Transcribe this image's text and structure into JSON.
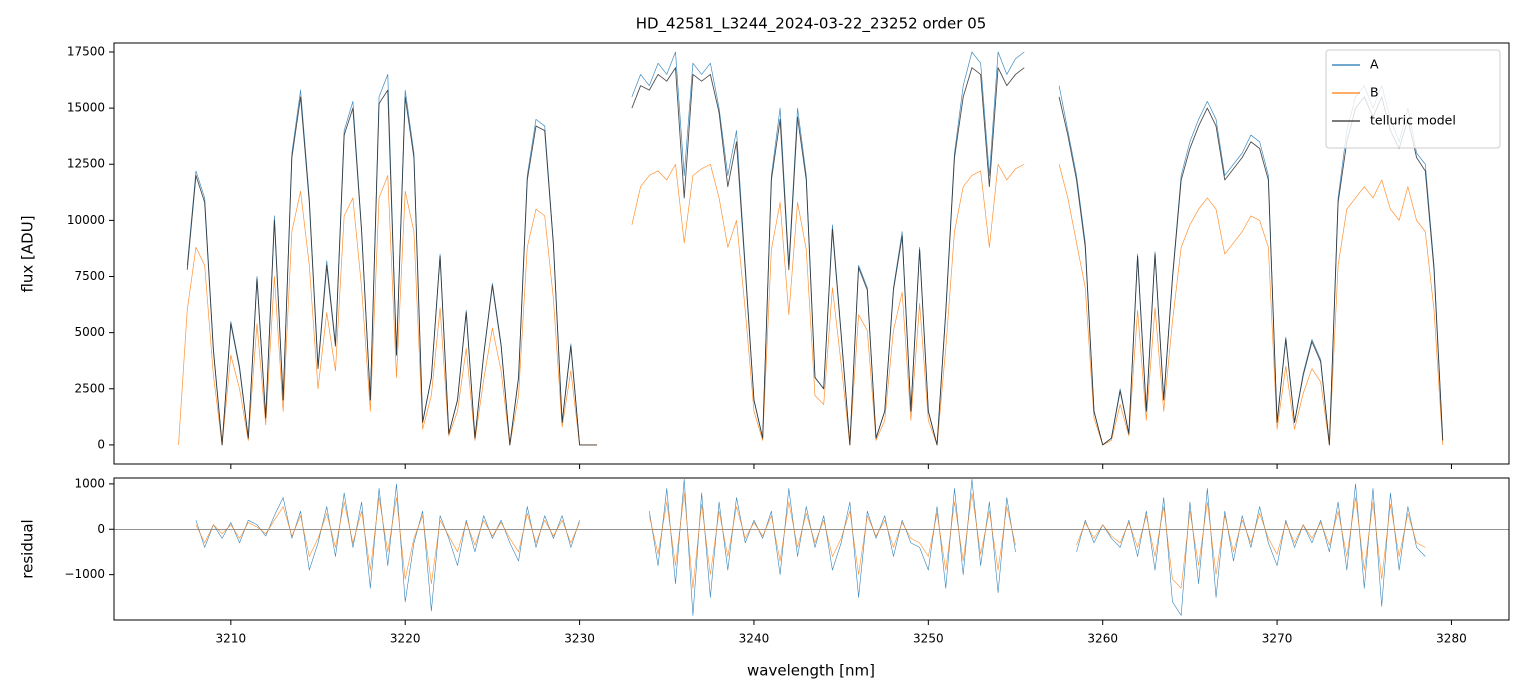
{
  "chart_data": [
    {
      "type": "line",
      "title": "HD_42581_L3244_2024-03-22_23252  order 05",
      "ylabel": "flux [ADU]",
      "xlim": [
        3203.3,
        3283.3
      ],
      "ylim": [
        -850,
        17900
      ],
      "xticks": [
        3210,
        3220,
        3230,
        3240,
        3250,
        3260,
        3270,
        3280
      ],
      "xtick_labels": false,
      "yticks": [
        0,
        2500,
        5000,
        7500,
        10000,
        12500,
        15000,
        17500
      ],
      "legend": "upper right",
      "x": [
        3207.0,
        3207.5,
        3208.0,
        3208.5,
        3209.0,
        3209.5,
        3210.0,
        3210.5,
        3211.0,
        3211.5,
        3212.0,
        3212.5,
        3213.0,
        3213.5,
        3214.0,
        3214.5,
        3215.0,
        3215.5,
        3216.0,
        3216.5,
        3217.0,
        3217.5,
        3218.0,
        3218.5,
        3219.0,
        3219.5,
        3220.0,
        3220.5,
        3221.0,
        3221.5,
        3222.0,
        3222.5,
        3223.0,
        3223.5,
        3224.0,
        3224.5,
        3225.0,
        3225.5,
        3226.0,
        3226.5,
        3227.0,
        3227.5,
        3228.0,
        3228.5,
        3229.0,
        3229.5,
        3230.0,
        3230.5,
        3231.0,
        3231.5,
        3232.0,
        3232.5,
        3233.0,
        3233.5,
        3234.0,
        3234.5,
        3235.0,
        3235.5,
        3236.0,
        3236.5,
        3237.0,
        3237.5,
        3238.0,
        3238.5,
        3239.0,
        3239.5,
        3240.0,
        3240.5,
        3241.0,
        3241.5,
        3242.0,
        3242.5,
        3243.0,
        3243.5,
        3244.0,
        3244.5,
        3245.0,
        3245.5,
        3246.0,
        3246.5,
        3247.0,
        3247.5,
        3248.0,
        3248.5,
        3249.0,
        3249.5,
        3250.0,
        3250.5,
        3251.0,
        3251.5,
        3252.0,
        3252.5,
        3253.0,
        3253.5,
        3254.0,
        3254.5,
        3255.0,
        3255.5,
        3256.0,
        3256.5,
        3257.0,
        3257.5,
        3258.0,
        3258.5,
        3259.0,
        3259.5,
        3260.0,
        3260.5,
        3261.0,
        3261.5,
        3262.0,
        3262.5,
        3263.0,
        3263.5,
        3264.0,
        3264.5,
        3265.0,
        3265.5,
        3266.0,
        3266.5,
        3267.0,
        3267.5,
        3268.0,
        3268.5,
        3269.0,
        3269.5,
        3270.0,
        3270.5,
        3271.0,
        3271.5,
        3272.0,
        3272.5,
        3273.0,
        3273.5,
        3274.0,
        3274.5,
        3275.0,
        3275.5,
        3276.0,
        3276.5,
        3277.0,
        3277.5,
        3278.0,
        3278.5,
        3279.0,
        3279.5,
        3280.0
      ],
      "series": [
        {
          "name": "A",
          "color": "#1f77b4",
          "width": 0.7,
          "opacity": 0.85,
          "values": [
            null,
            8000,
            12200,
            11000,
            4300,
            0,
            5500,
            3500,
            300,
            7500,
            1200,
            10200,
            2000,
            13000,
            15800,
            11000,
            3500,
            8200,
            4500,
            14000,
            15300,
            9600,
            2000,
            15500,
            16500,
            4000,
            15800,
            13000,
            1000,
            3000,
            8500,
            500,
            2000,
            6000,
            300,
            4000,
            7200,
            4500,
            0,
            3000,
            12000,
            14500,
            14200,
            9000,
            1000,
            4500,
            0,
            0,
            0,
            null,
            null,
            null,
            15500,
            16500,
            16000,
            17000,
            16500,
            17500,
            12000,
            17000,
            16500,
            17000,
            15000,
            12000,
            14000,
            8000,
            2000,
            300,
            12000,
            15000,
            8000,
            15000,
            12000,
            3000,
            2500,
            9800,
            5000,
            0,
            8000,
            7000,
            300,
            1500,
            7000,
            9500,
            1500,
            8800,
            1500,
            0,
            6000,
            13000,
            16000,
            17500,
            17000,
            12000,
            17500,
            16500,
            17200,
            17500,
            null,
            null,
            null,
            16000,
            14000,
            12000,
            9000,
            1500,
            0,
            300,
            2500,
            500,
            8500,
            1500,
            8600,
            2000,
            7500,
            12000,
            13500,
            14500,
            15300,
            14500,
            12000,
            12500,
            13000,
            13800,
            13500,
            12000,
            1000,
            4800,
            1000,
            3200,
            4700,
            3800,
            0,
            11000,
            14000,
            15500,
            16000,
            15000,
            16000,
            14500,
            13500,
            15000,
            13000,
            12500,
            8000,
            200,
            null
          ]
        },
        {
          "name": "B",
          "color": "#ff7f0e",
          "width": 0.7,
          "opacity": 0.85,
          "values": [
            0,
            6000,
            8800,
            8000,
            3100,
            0,
            4000,
            2500,
            200,
            5400,
            900,
            7500,
            1500,
            9500,
            11300,
            8000,
            2500,
            5900,
            3300,
            10200,
            11000,
            7000,
            1500,
            11000,
            12000,
            3000,
            11300,
            9500,
            700,
            2200,
            6100,
            400,
            1500,
            4300,
            200,
            2900,
            5200,
            3300,
            0,
            2200,
            8800,
            10500,
            10200,
            6500,
            800,
            3300,
            0,
            0,
            0,
            null,
            null,
            null,
            9800,
            11500,
            12000,
            12200,
            11800,
            12500,
            9000,
            12000,
            12300,
            12500,
            11000,
            8800,
            10000,
            6000,
            1500,
            200,
            8700,
            10800,
            5800,
            10800,
            8700,
            2200,
            1800,
            7000,
            3600,
            0,
            5800,
            5100,
            200,
            1100,
            5100,
            6800,
            1100,
            6300,
            1100,
            0,
            4300,
            9500,
            11500,
            12000,
            12200,
            8800,
            12500,
            11800,
            12300,
            12500,
            null,
            null,
            null,
            12500,
            11000,
            9000,
            7000,
            1200,
            0,
            200,
            1800,
            400,
            6000,
            1100,
            6100,
            1500,
            5500,
            8800,
            9800,
            10500,
            11000,
            10500,
            8500,
            9000,
            9500,
            10200,
            10000,
            8800,
            700,
            3500,
            700,
            2300,
            3400,
            2800,
            0,
            8000,
            10500,
            11000,
            11500,
            11000,
            11800,
            10500,
            10000,
            11500,
            10000,
            9500,
            6000,
            0,
            null
          ]
        },
        {
          "name": "telluric model",
          "color": "#222222",
          "width": 0.9,
          "opacity": 0.8,
          "values": [
            null,
            7800,
            12000,
            10800,
            4200,
            0,
            5400,
            3400,
            300,
            7400,
            1200,
            10000,
            2000,
            12800,
            15500,
            10800,
            3400,
            8000,
            4400,
            13800,
            15000,
            9500,
            2000,
            15200,
            15800,
            4000,
            15500,
            12800,
            1000,
            3000,
            8400,
            500,
            2000,
            5900,
            300,
            4000,
            7100,
            4400,
            0,
            3000,
            11800,
            14200,
            14000,
            8900,
            1000,
            4400,
            0,
            0,
            0,
            null,
            null,
            null,
            15000,
            16000,
            15800,
            16500,
            16200,
            16800,
            11000,
            16500,
            16200,
            16500,
            14800,
            11500,
            13500,
            7800,
            2000,
            300,
            11800,
            14500,
            7800,
            14600,
            11800,
            3000,
            2500,
            9600,
            4900,
            0,
            7900,
            6900,
            300,
            1500,
            6900,
            9300,
            1500,
            8700,
            1500,
            0,
            5900,
            12800,
            15500,
            16800,
            16500,
            11500,
            16800,
            16000,
            16500,
            16800,
            null,
            null,
            null,
            15500,
            13800,
            11800,
            8800,
            1500,
            0,
            300,
            2400,
            500,
            8400,
            1500,
            8500,
            2000,
            7400,
            11800,
            13200,
            14200,
            15000,
            14200,
            11800,
            12300,
            12800,
            13500,
            13200,
            11800,
            1000,
            4700,
            1000,
            3100,
            4600,
            3700,
            0,
            10800,
            13500,
            15000,
            15500,
            14600,
            15500,
            14000,
            13200,
            14500,
            12800,
            12200,
            7800,
            200,
            null
          ]
        }
      ]
    },
    {
      "type": "line",
      "ylabel": "residual",
      "xlabel": "wavelength [nm]",
      "xlim": [
        3203.3,
        3283.3
      ],
      "ylim": [
        -2000,
        1130
      ],
      "xticks": [
        3210,
        3220,
        3230,
        3240,
        3250,
        3260,
        3270,
        3280
      ],
      "xtick_labels": true,
      "yticks": [
        {
          "value": -1000,
          "label": "−1000"
        },
        0,
        1000
      ],
      "zero_line": true,
      "x": [
        3207.0,
        3207.5,
        3208.0,
        3208.5,
        3209.0,
        3209.5,
        3210.0,
        3210.5,
        3211.0,
        3211.5,
        3212.0,
        3212.5,
        3213.0,
        3213.5,
        3214.0,
        3214.5,
        3215.0,
        3215.5,
        3216.0,
        3216.5,
        3217.0,
        3217.5,
        3218.0,
        3218.5,
        3219.0,
        3219.5,
        3220.0,
        3220.5,
        3221.0,
        3221.5,
        3222.0,
        3222.5,
        3223.0,
        3223.5,
        3224.0,
        3224.5,
        3225.0,
        3225.5,
        3226.0,
        3226.5,
        3227.0,
        3227.5,
        3228.0,
        3228.5,
        3229.0,
        3229.5,
        3230.0,
        3230.5,
        3231.0,
        3231.5,
        3232.0,
        3232.5,
        3233.0,
        3233.5,
        3234.0,
        3234.5,
        3235.0,
        3235.5,
        3236.0,
        3236.5,
        3237.0,
        3237.5,
        3238.0,
        3238.5,
        3239.0,
        3239.5,
        3240.0,
        3240.5,
        3241.0,
        3241.5,
        3242.0,
        3242.5,
        3243.0,
        3243.5,
        3244.0,
        3244.5,
        3245.0,
        3245.5,
        3246.0,
        3246.5,
        3247.0,
        3247.5,
        3248.0,
        3248.5,
        3249.0,
        3249.5,
        3250.0,
        3250.5,
        3251.0,
        3251.5,
        3252.0,
        3252.5,
        3253.0,
        3253.5,
        3254.0,
        3254.5,
        3255.0,
        3255.5,
        3256.0,
        3256.5,
        3257.0,
        3257.5,
        3258.0,
        3258.5,
        3259.0,
        3259.5,
        3260.0,
        3260.5,
        3261.0,
        3261.5,
        3262.0,
        3262.5,
        3263.0,
        3263.5,
        3264.0,
        3264.5,
        3265.0,
        3265.5,
        3266.0,
        3266.5,
        3267.0,
        3267.5,
        3268.0,
        3268.5,
        3269.0,
        3269.5,
        3270.0,
        3270.5,
        3271.0,
        3271.5,
        3272.0,
        3272.5,
        3273.0,
        3273.5,
        3274.0,
        3274.5,
        3275.0,
        3275.5,
        3276.0,
        3276.5,
        3277.0,
        3277.5,
        3278.0,
        3278.5,
        3279.0,
        3279.5,
        3280.0
      ],
      "series": [
        {
          "name": "A",
          "color": "#1f77b4",
          "width": 0.6,
          "opacity": 0.9,
          "values": [
            null,
            null,
            200,
            -400,
            100,
            -200,
            150,
            -300,
            200,
            100,
            -150,
            300,
            700,
            -200,
            400,
            -900,
            -300,
            500,
            -600,
            800,
            -400,
            600,
            -1300,
            900,
            -800,
            1000,
            -1600,
            -300,
            400,
            -1800,
            300,
            -200,
            -800,
            200,
            -500,
            300,
            -200,
            200,
            -300,
            -700,
            500,
            -400,
            300,
            -200,
            300,
            -400,
            200,
            null,
            null,
            null,
            null,
            null,
            null,
            null,
            400,
            -800,
            900,
            -1200,
            1100,
            -1900,
            800,
            -1500,
            600,
            -900,
            700,
            -300,
            200,
            -200,
            400,
            -1000,
            900,
            -600,
            500,
            -400,
            300,
            -900,
            -300,
            600,
            -1500,
            400,
            -200,
            300,
            -600,
            200,
            -300,
            -400,
            -900,
            500,
            -1300,
            900,
            -1000,
            1100,
            -800,
            600,
            -1400,
            700,
            -500,
            null,
            null,
            null,
            null,
            null,
            null,
            -500,
            200,
            -300,
            100,
            -200,
            -400,
            200,
            -600,
            400,
            -900,
            700,
            -1600,
            -1900,
            600,
            -1200,
            900,
            -1500,
            400,
            -700,
            300,
            -400,
            500,
            -300,
            -800,
            200,
            -400,
            100,
            -300,
            200,
            -500,
            600,
            -900,
            1000,
            -1300,
            900,
            -1700,
            800,
            -900,
            500,
            -400,
            -600,
            null,
            null,
            null
          ]
        },
        {
          "name": "B",
          "color": "#ff7f0e",
          "width": 0.6,
          "opacity": 0.9,
          "values": [
            null,
            null,
            100,
            -300,
            100,
            -100,
            100,
            -200,
            150,
            50,
            -100,
            200,
            500,
            -150,
            300,
            -600,
            -200,
            350,
            -400,
            600,
            -300,
            400,
            -900,
            700,
            -500,
            700,
            -1100,
            -200,
            300,
            -1200,
            200,
            -150,
            -500,
            150,
            -350,
            200,
            -150,
            150,
            -200,
            -500,
            350,
            -300,
            200,
            -150,
            200,
            -300,
            150,
            null,
            null,
            null,
            null,
            null,
            null,
            null,
            300,
            -550,
            600,
            -800,
            800,
            -1300,
            550,
            -1000,
            400,
            -600,
            500,
            -200,
            150,
            -150,
            300,
            -700,
            600,
            -400,
            350,
            -300,
            200,
            -600,
            -200,
            400,
            -1000,
            300,
            -150,
            200,
            -400,
            150,
            -200,
            -300,
            -600,
            350,
            -900,
            600,
            -700,
            800,
            -550,
            400,
            -900,
            500,
            -350,
            null,
            null,
            null,
            null,
            null,
            null,
            -350,
            150,
            -200,
            100,
            -150,
            -300,
            150,
            -400,
            300,
            -600,
            500,
            -1100,
            -1300,
            400,
            -800,
            600,
            -1000,
            300,
            -500,
            200,
            -300,
            350,
            -200,
            -550,
            150,
            -300,
            100,
            -200,
            150,
            -350,
            400,
            -600,
            700,
            -900,
            600,
            -1100,
            550,
            -600,
            350,
            -300,
            -400,
            null,
            null,
            null
          ]
        }
      ]
    }
  ]
}
